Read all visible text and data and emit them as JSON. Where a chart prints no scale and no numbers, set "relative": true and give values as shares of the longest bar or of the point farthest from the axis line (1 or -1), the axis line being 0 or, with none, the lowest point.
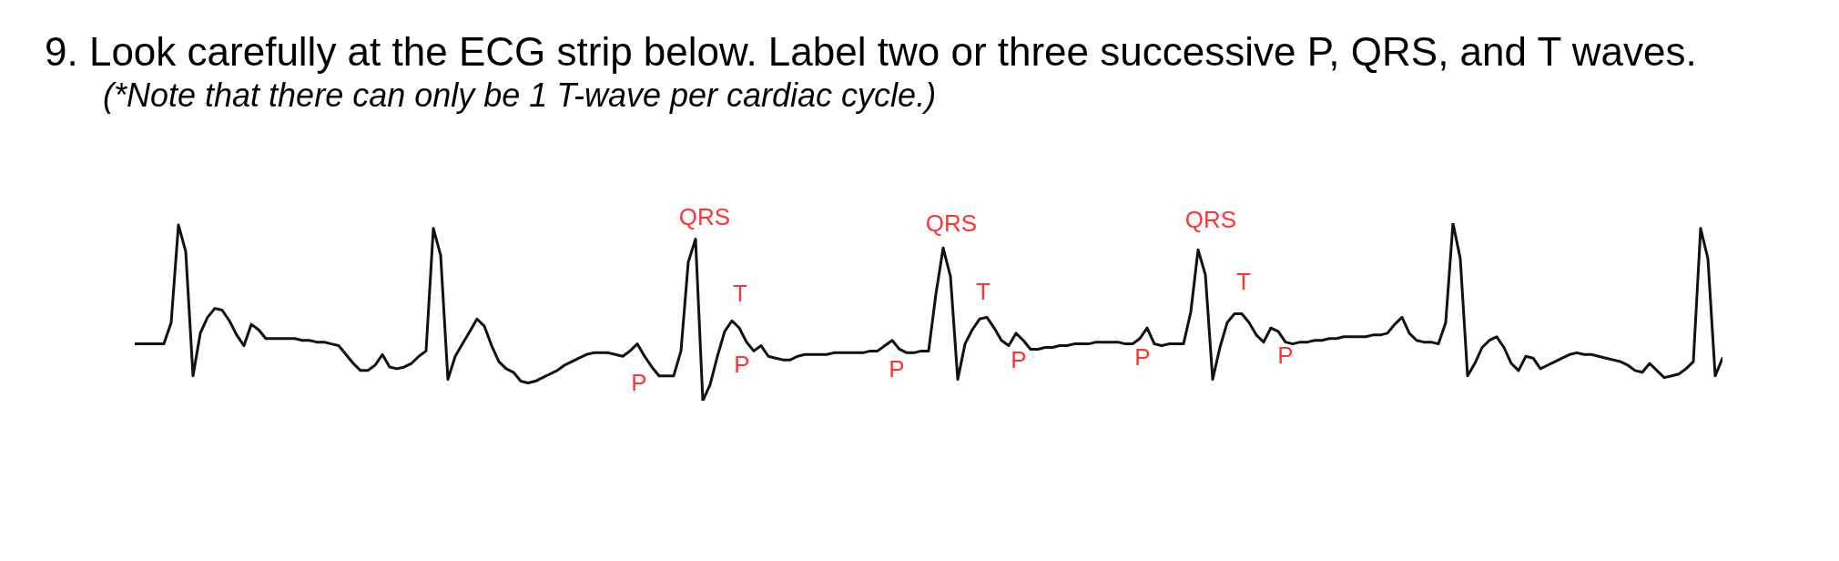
{
  "chart_data": {
    "type": "line",
    "title": "9. Look carefully at the ECG strip below. Label two or three successive P, QRS, and T waves.",
    "subtitle": "(*Note that there can only be 1 T-wave per cardiac cycle.)",
    "annotations": [
      "P",
      "QRS",
      "T",
      "P",
      "P",
      "QRS",
      "T",
      "P",
      "P",
      "QRS",
      "T",
      "P"
    ],
    "categories": [
      null,
      null,
      null,
      null,
      null,
      null,
      null,
      null,
      null,
      null,
      null,
      null,
      null,
      null,
      null,
      null,
      null,
      null,
      null,
      null,
      null,
      null,
      null,
      null,
      null,
      null,
      null,
      null,
      null,
      null,
      null,
      null,
      null,
      null,
      null,
      null,
      null,
      null,
      null,
      null,
      null,
      null,
      null,
      null,
      null,
      null,
      null,
      null,
      null,
      null,
      null,
      null,
      null,
      null,
      null,
      null,
      null,
      null,
      null,
      null,
      null,
      null,
      null,
      null,
      null,
      null,
      null,
      null,
      null,
      null,
      null,
      null,
      null,
      null,
      null,
      null,
      null,
      null,
      null,
      null,
      null,
      null,
      null,
      null,
      null,
      null,
      null,
      null,
      null,
      null,
      null,
      null,
      null,
      null,
      null,
      null,
      null,
      null,
      null,
      null,
      null,
      null,
      null,
      null,
      null,
      null,
      null,
      null,
      null,
      null,
      null,
      null,
      null,
      null,
      null,
      null,
      null,
      null,
      null,
      null,
      null,
      null,
      null,
      null,
      null,
      null,
      null,
      null,
      null,
      null,
      null,
      null,
      null,
      null,
      null,
      null,
      null,
      null,
      null,
      null,
      null,
      null,
      null,
      null,
      null,
      null,
      null,
      null,
      null,
      null,
      null,
      null,
      null,
      null,
      null,
      null,
      null,
      null,
      null,
      null,
      null,
      null,
      null,
      null,
      null,
      null,
      null,
      null,
      null,
      null,
      null,
      null,
      null,
      null,
      null,
      null,
      null,
      null,
      null,
      null,
      null,
      null,
      null,
      null,
      null,
      null,
      null,
      null,
      null,
      null,
      null,
      null,
      null,
      null,
      null,
      null,
      null,
      null,
      null,
      null,
      null,
      null,
      null,
      null,
      null,
      null,
      null,
      null,
      null,
      null,
      null,
      null,
      null,
      null,
      null,
      null,
      null,
      null,
      null
    ],
    "series": [
      {
        "color": "#111111",
        "values": [
          0.32,
          0.32,
          0.32,
          0.32,
          0.32,
          0.44,
          0.99,
          0.84,
          0.14,
          0.38,
          0.47,
          0.52,
          0.51,
          0.45,
          0.37,
          0.31,
          0.43,
          0.4,
          0.35,
          0.35,
          0.35,
          0.35,
          0.35,
          0.34,
          0.34,
          0.33,
          0.33,
          0.32,
          0.31,
          0.26,
          0.21,
          0.17,
          0.17,
          0.2,
          0.26,
          0.19,
          0.18,
          0.19,
          0.21,
          0.25,
          0.28,
          0.97,
          0.82,
          0.12,
          0.25,
          0.32,
          0.39,
          0.46,
          0.42,
          0.31,
          0.22,
          0.18,
          0.16,
          0.11,
          0.1,
          0.11,
          0.13,
          0.15,
          0.17,
          0.2,
          0.22,
          0.24,
          0.26,
          0.27,
          0.27,
          0.27,
          0.26,
          0.25,
          0.28,
          0.32,
          0.25,
          0.19,
          0.14,
          0.14,
          0.14,
          0.28,
          0.78,
          0.91,
          0,
          0.09,
          0.25,
          0.39,
          0.45,
          0.41,
          0.33,
          0.28,
          0.31,
          0.25,
          0.24,
          0.23,
          0.23,
          0.25,
          0.26,
          0.26,
          0.26,
          0.26,
          0.27,
          0.27,
          0.27,
          0.27,
          0.27,
          0.28,
          0.28,
          0.31,
          0.34,
          0.29,
          0.27,
          0.27,
          0.28,
          0.28,
          0.6,
          0.86,
          0.7,
          0.12,
          0.32,
          0.4,
          0.46,
          0.47,
          0.41,
          0.34,
          0.31,
          0.38,
          0.34,
          0.29,
          0.29,
          0.3,
          0.3,
          0.31,
          0.31,
          0.32,
          0.32,
          0.32,
          0.33,
          0.33,
          0.33,
          0.33,
          0.32,
          0.32,
          0.35,
          0.41,
          0.32,
          0.31,
          0.32,
          0.32,
          0.32,
          0.5,
          0.85,
          0.71,
          0.12,
          0.3,
          0.44,
          0.49,
          0.49,
          0.44,
          0.37,
          0.33,
          0.41,
          0.39,
          0.33,
          0.32,
          0.33,
          0.33,
          0.34,
          0.34,
          0.35,
          0.35,
          0.36,
          0.36,
          0.36,
          0.36,
          0.37,
          0.37,
          0.38,
          0.43,
          0.47,
          0.38,
          0.34,
          0.33,
          0.33,
          0.32,
          0.44,
          1,
          0.8,
          0.14,
          0.21,
          0.3,
          0.34,
          0.36,
          0.3,
          0.21,
          0.17,
          0.25,
          0.24,
          0.18,
          0.2,
          0.22,
          0.24,
          0.26,
          0.27,
          0.26,
          0.26,
          0.25,
          0.24,
          0.23,
          0.22,
          0.2,
          0.17,
          0.16,
          0.21,
          0.17,
          0.13,
          0.14,
          0.15,
          0.18,
          0.22,
          0.97,
          0.8,
          0.14,
          0.24
        ]
      }
    ],
    "relative": true,
    "line_style": "solid"
  }
}
